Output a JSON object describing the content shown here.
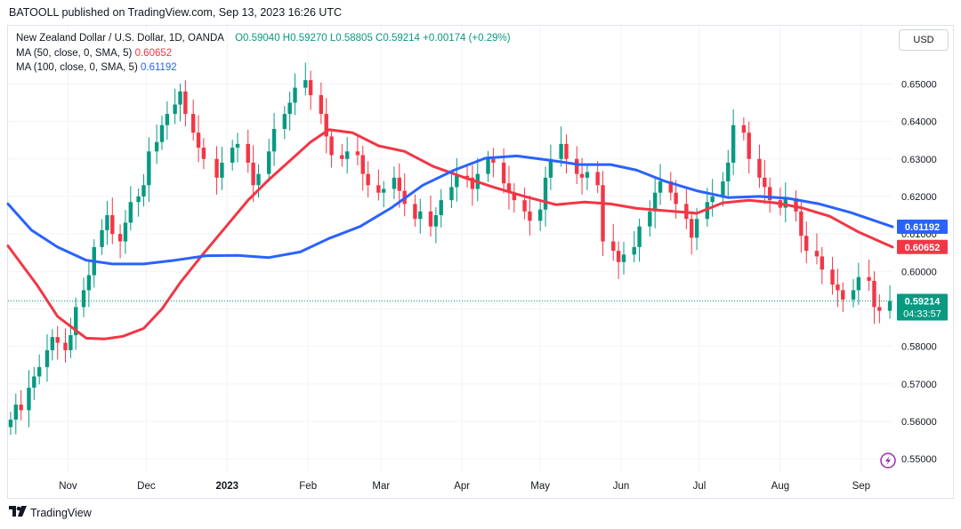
{
  "header": {
    "published": "BATOOLL published on TradingView.com, Sep 13, 2023 16:26 UTC"
  },
  "legend": {
    "symbol": "New Zealand Dollar / U.S. Dollar, 1D, OANDA",
    "open": "O0.59040",
    "high": "H0.59270",
    "low": "L0.58805",
    "close": "C0.59214",
    "change": "+0.00174 (+0.29%)",
    "ma50_label": "MA (50, close, 0, SMA, 5)",
    "ma50_value": "0.60652",
    "ma100_label": "MA (100, close, 0, SMA, 5)",
    "ma100_value": "0.61192"
  },
  "currency_button": "USD",
  "price_badge": {
    "value": "0.59214",
    "countdown": "04:33:57"
  },
  "footer": {
    "brand": "TradingView",
    "logo": "tradingview-logo-icon"
  },
  "colors": {
    "up": "#089981",
    "down": "#f23645",
    "ma50": "#f23645",
    "ma100": "#2962ff",
    "grid": "#f0f3fa"
  },
  "chart_data": {
    "type": "candlestick",
    "title": "New Zealand Dollar / U.S. Dollar, 1D, OANDA",
    "y_ticks": [
      "0.55000",
      "0.56000",
      "0.57000",
      "0.58000",
      "0.59000",
      "0.60000",
      "0.61000",
      "0.62000",
      "0.63000",
      "0.64000",
      "0.65000"
    ],
    "ylim": [
      0.5465,
      0.6655
    ],
    "x_ticks": [
      {
        "label": "Nov",
        "date": "2022-11-01"
      },
      {
        "label": "Dec",
        "date": "2022-12-01"
      },
      {
        "label": "2023",
        "date": "2023-01-01"
      },
      {
        "label": "Feb",
        "date": "2023-02-01"
      },
      {
        "label": "Mar",
        "date": "2023-03-01"
      },
      {
        "label": "Apr",
        "date": "2023-04-01"
      },
      {
        "label": "May",
        "date": "2023-05-01"
      },
      {
        "label": "Jun",
        "date": "2023-06-01"
      },
      {
        "label": "Jul",
        "date": "2023-07-01"
      },
      {
        "label": "Aug",
        "date": "2023-08-01"
      },
      {
        "label": "Sep",
        "date": "2023-09-01"
      }
    ],
    "xlim": [
      "2022-10-09",
      "2023-09-13"
    ],
    "grid": true,
    "series": [
      {
        "name": "MA (50, close, 0, SMA, 5)",
        "color": "#f23645",
        "points": [
          [
            "2022-10-09",
            0.6068
          ],
          [
            "2022-10-20",
            0.5965
          ],
          [
            "2022-10-28",
            0.588
          ],
          [
            "2022-11-08",
            0.5822
          ],
          [
            "2022-11-15",
            0.582
          ],
          [
            "2022-11-22",
            0.5827
          ],
          [
            "2022-11-30",
            0.5848
          ],
          [
            "2022-12-07",
            0.59
          ],
          [
            "2022-12-14",
            0.597
          ],
          [
            "2022-12-22",
            0.604
          ],
          [
            "2022-12-31",
            0.6115
          ],
          [
            "2023-01-09",
            0.619
          ],
          [
            "2023-01-17",
            0.6245
          ],
          [
            "2023-01-25",
            0.6295
          ],
          [
            "2023-02-02",
            0.6345
          ],
          [
            "2023-02-09",
            0.6378
          ],
          [
            "2023-02-18",
            0.637
          ],
          [
            "2023-02-28",
            0.6335
          ],
          [
            "2023-03-10",
            0.632
          ],
          [
            "2023-03-21",
            0.628
          ],
          [
            "2023-04-02",
            0.625
          ],
          [
            "2023-04-13",
            0.6225
          ],
          [
            "2023-04-25",
            0.62
          ],
          [
            "2023-05-07",
            0.6178
          ],
          [
            "2023-05-18",
            0.6185
          ],
          [
            "2023-05-28",
            0.618
          ],
          [
            "2023-06-07",
            0.6168
          ],
          [
            "2023-06-18",
            0.6162
          ],
          [
            "2023-06-30",
            0.6155
          ],
          [
            "2023-07-10",
            0.6183
          ],
          [
            "2023-07-20",
            0.619
          ],
          [
            "2023-07-30",
            0.6183
          ],
          [
            "2023-08-09",
            0.617
          ],
          [
            "2023-08-20",
            0.6147
          ],
          [
            "2023-08-31",
            0.6105
          ],
          [
            "2023-09-13",
            0.6065
          ]
        ]
      },
      {
        "name": "MA (100, close, 0, SMA, 5)",
        "color": "#2962ff",
        "points": [
          [
            "2022-10-09",
            0.618
          ],
          [
            "2022-10-18",
            0.611
          ],
          [
            "2022-10-28",
            0.6065
          ],
          [
            "2022-11-08",
            0.603
          ],
          [
            "2022-11-18",
            0.602
          ],
          [
            "2022-11-30",
            0.602
          ],
          [
            "2022-12-12",
            0.603
          ],
          [
            "2022-12-24",
            0.6042
          ],
          [
            "2023-01-05",
            0.6043
          ],
          [
            "2023-01-17",
            0.6037
          ],
          [
            "2023-01-29",
            0.6052
          ],
          [
            "2023-02-09",
            0.6088
          ],
          [
            "2023-02-21",
            0.612
          ],
          [
            "2023-03-05",
            0.617
          ],
          [
            "2023-03-17",
            0.623
          ],
          [
            "2023-03-29",
            0.627
          ],
          [
            "2023-04-10",
            0.6302
          ],
          [
            "2023-04-22",
            0.6308
          ],
          [
            "2023-05-04",
            0.6297
          ],
          [
            "2023-05-16",
            0.6285
          ],
          [
            "2023-05-28",
            0.6285
          ],
          [
            "2023-06-07",
            0.627
          ],
          [
            "2023-06-18",
            0.624
          ],
          [
            "2023-06-30",
            0.6215
          ],
          [
            "2023-07-12",
            0.6197
          ],
          [
            "2023-07-24",
            0.62
          ],
          [
            "2023-08-04",
            0.6195
          ],
          [
            "2023-08-16",
            0.618
          ],
          [
            "2023-08-28",
            0.6157
          ],
          [
            "2023-09-13",
            0.6119
          ]
        ]
      }
    ],
    "candles_approx": {
      "note": "daily OHLC bars, read approximately from the chart",
      "dates": [
        "2022-10-10",
        "2022-10-12",
        "2022-10-14",
        "2022-10-17",
        "2022-10-19",
        "2022-10-21",
        "2022-10-24",
        "2022-10-26",
        "2022-10-28",
        "2022-10-31",
        "2022-11-02",
        "2022-11-04",
        "2022-11-07",
        "2022-11-09",
        "2022-11-11",
        "2022-11-14",
        "2022-11-16",
        "2022-11-18",
        "2022-11-21",
        "2022-11-23",
        "2022-11-25",
        "2022-11-28",
        "2022-11-30",
        "2022-12-02",
        "2022-12-05",
        "2022-12-07",
        "2022-12-09",
        "2022-12-12",
        "2022-12-14",
        "2022-12-16",
        "2022-12-19",
        "2022-12-21",
        "2022-12-23",
        "2022-12-28",
        "2022-12-30",
        "2023-01-03",
        "2023-01-05",
        "2023-01-09",
        "2023-01-11",
        "2023-01-13",
        "2023-01-17",
        "2023-01-19",
        "2023-01-23",
        "2023-01-25",
        "2023-01-27",
        "2023-01-31",
        "2023-02-02",
        "2023-02-06",
        "2023-02-08",
        "2023-02-10",
        "2023-02-14",
        "2023-02-16",
        "2023-02-20",
        "2023-02-22",
        "2023-02-24",
        "2023-02-28",
        "2023-03-02",
        "2023-03-06",
        "2023-03-08",
        "2023-03-10",
        "2023-03-14",
        "2023-03-16",
        "2023-03-20",
        "2023-03-22",
        "2023-03-24",
        "2023-03-28",
        "2023-03-30",
        "2023-04-03",
        "2023-04-05",
        "2023-04-07",
        "2023-04-11",
        "2023-04-13",
        "2023-04-17",
        "2023-04-19",
        "2023-04-21",
        "2023-04-25",
        "2023-04-27",
        "2023-05-01",
        "2023-05-03",
        "2023-05-05",
        "2023-05-09",
        "2023-05-11",
        "2023-05-15",
        "2023-05-17",
        "2023-05-19",
        "2023-05-23",
        "2023-05-25",
        "2023-05-29",
        "2023-05-31",
        "2023-06-02",
        "2023-06-06",
        "2023-06-08",
        "2023-06-12",
        "2023-06-14",
        "2023-06-16",
        "2023-06-20",
        "2023-06-22",
        "2023-06-26",
        "2023-06-28",
        "2023-06-30",
        "2023-07-04",
        "2023-07-06",
        "2023-07-10",
        "2023-07-12",
        "2023-07-14",
        "2023-07-18",
        "2023-07-20",
        "2023-07-24",
        "2023-07-26",
        "2023-07-28",
        "2023-08-01",
        "2023-08-03",
        "2023-08-07",
        "2023-08-09",
        "2023-08-11",
        "2023-08-15",
        "2023-08-17",
        "2023-08-21",
        "2023-08-23",
        "2023-08-25",
        "2023-08-29",
        "2023-08-31",
        "2023-09-04",
        "2023-09-06",
        "2023-09-08",
        "2023-09-12"
      ],
      "close": [
        0.5605,
        0.5645,
        0.563,
        0.569,
        0.572,
        0.5745,
        0.579,
        0.5825,
        0.581,
        0.579,
        0.583,
        0.5905,
        0.595,
        0.599,
        0.6065,
        0.611,
        0.615,
        0.61,
        0.608,
        0.613,
        0.6185,
        0.62,
        0.623,
        0.632,
        0.6345,
        0.639,
        0.642,
        0.6445,
        0.648,
        0.642,
        0.637,
        0.633,
        0.63,
        0.625,
        0.629,
        0.633,
        0.634,
        0.629,
        0.623,
        0.626,
        0.632,
        0.638,
        0.642,
        0.645,
        0.649,
        0.651,
        0.647,
        0.642,
        0.636,
        0.631,
        0.63,
        0.632,
        0.631,
        0.626,
        0.623,
        0.621,
        0.622,
        0.625,
        0.6215,
        0.618,
        0.614,
        0.616,
        0.612,
        0.615,
        0.619,
        0.6225,
        0.6255,
        0.625,
        0.622,
        0.626,
        0.63,
        0.629,
        0.6235,
        0.621,
        0.619,
        0.616,
        0.6135,
        0.6165,
        0.625,
        0.63,
        0.634,
        0.63,
        0.626,
        0.625,
        0.6265,
        0.623,
        0.608,
        0.6055,
        0.6025,
        0.6045,
        0.6065,
        0.612,
        0.616,
        0.621,
        0.624,
        0.621,
        0.618,
        0.614,
        0.609,
        0.614,
        0.6185,
        0.62,
        0.624,
        0.629,
        0.639,
        0.637,
        0.63,
        0.625,
        0.6225,
        0.619,
        0.617,
        0.6195,
        0.616,
        0.6095,
        0.6055,
        0.604,
        0.6005,
        0.5965,
        0.595,
        0.5925,
        0.595,
        0.5985,
        0.5975,
        0.5905,
        0.5895,
        0.5921
      ],
      "spread": 0.006
    }
  }
}
